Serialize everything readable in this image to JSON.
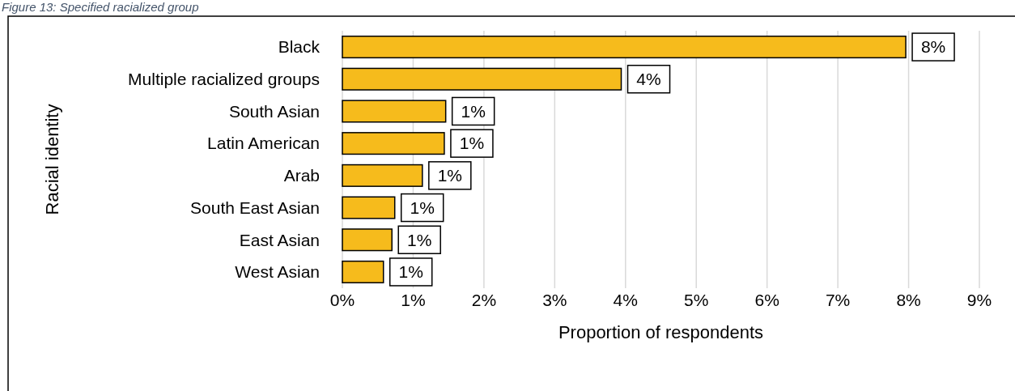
{
  "chart_data": {
    "type": "bar",
    "orientation": "horizontal",
    "title": "Figure 13: Specified racialized group",
    "xlabel": "Proportion of respondents",
    "ylabel": "Racial identity",
    "categories": [
      "Black",
      "Multiple racialized groups",
      "South Asian",
      "Latin American",
      "Arab",
      "South East Asian",
      "East Asian",
      "West Asian"
    ],
    "values": [
      7.96,
      3.94,
      1.46,
      1.44,
      1.13,
      0.74,
      0.7,
      0.58
    ],
    "value_labels": [
      "8%",
      "4%",
      "1%",
      "1%",
      "1%",
      "1%",
      "1%",
      "1%"
    ],
    "color": "#f6bb1c",
    "xlim": [
      0,
      9
    ],
    "xticks": [
      {
        "value": 0,
        "label": "0%"
      },
      {
        "value": 1,
        "label": "1%"
      },
      {
        "value": 2,
        "label": "2%"
      },
      {
        "value": 3,
        "label": "3%"
      },
      {
        "value": 4,
        "label": "4%"
      },
      {
        "value": 5,
        "label": "5%"
      },
      {
        "value": 6,
        "label": "6%"
      },
      {
        "value": 7,
        "label": "7%"
      },
      {
        "value": 8,
        "label": "8%"
      },
      {
        "value": 9,
        "label": "9%"
      }
    ],
    "grid": "x"
  }
}
